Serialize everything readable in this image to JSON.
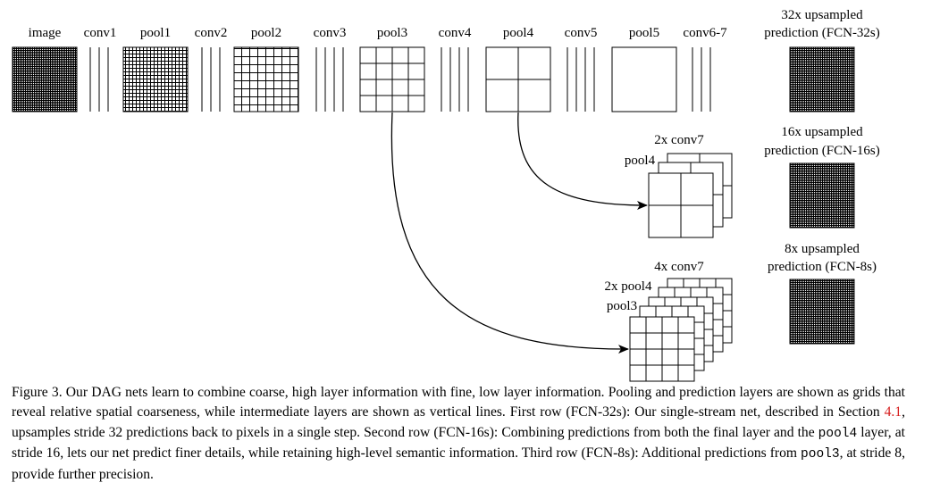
{
  "diagram": {
    "top_labels": {
      "image": "image",
      "conv1": "conv1",
      "pool1": "pool1",
      "conv2": "conv2",
      "pool2": "pool2",
      "conv3": "conv3",
      "pool3": "pool3",
      "conv4": "conv4",
      "pool4": "pool4",
      "conv5": "conv5",
      "pool5": "pool5",
      "conv67": "conv6-7"
    },
    "row1_label": {
      "line1": "32x upsampled",
      "line2": "prediction (FCN-32s)"
    },
    "row2_label": {
      "line1": "16x upsampled",
      "line2": "prediction (FCN-16s)"
    },
    "row3_label": {
      "line1": "8x upsampled",
      "line2": "prediction (FCN-8s)"
    },
    "row2_stack_labels": {
      "conv7_2x": "2x conv7",
      "pool4": "pool4"
    },
    "row3_stack_labels": {
      "conv7_4x": "4x conv7",
      "pool4_2x": "2x pool4",
      "pool3": "pool3"
    }
  },
  "caption": {
    "s1": "Figure 3.  Our DAG nets learn to combine coarse, high layer information with fine, low layer information. Pooling and prediction layers are shown as grids that reveal relative spatial coarseness, while intermediate layers are shown as vertical lines. First row (FCN-32s): Our single-stream net, described in Section ",
    "ref": "4.1",
    "s2": ", upsamples stride 32 predictions back to pixels in a single step. Second row (FCN-16s): Combining predictions from both the final layer and the ",
    "code_pool4": "pool4",
    "s3": " layer, at stride 16, lets our net predict finer details, while retaining high-level semantic information. Third row (FCN-8s): Additional predictions from ",
    "code_pool3": "pool3",
    "s4": ", at stride 8, provide further precision."
  }
}
